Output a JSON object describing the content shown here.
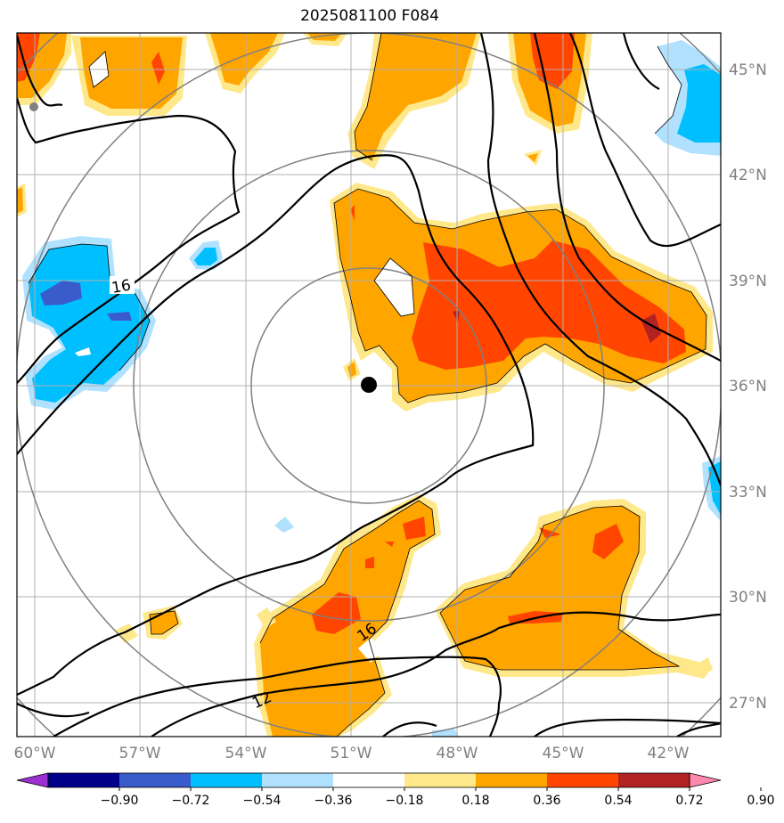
{
  "title": "2025081100 F084",
  "map": {
    "lon_ticks": [
      "60°W",
      "57°W",
      "54°W",
      "51°W",
      "48°W",
      "45°W",
      "42°W"
    ],
    "lat_ticks": [
      "45°N",
      "42°N",
      "39°N",
      "36°N",
      "33°N",
      "30°N",
      "27°N"
    ],
    "range_rings": 4,
    "center_marker": "storm-center",
    "contour_labels": [
      {
        "text": "16",
        "label": "upper-left"
      },
      {
        "text": "16",
        "label": "lower-center"
      },
      {
        "text": "12",
        "label": "lower-left"
      }
    ]
  },
  "colorbar": {
    "ticks": [
      "−0.90",
      "−0.72",
      "−0.54",
      "−0.36",
      "−0.18",
      "0.18",
      "0.36",
      "0.54",
      "0.72",
      "0.90"
    ],
    "colors": [
      "#9b30d0",
      "#00008b",
      "#3a5bcc",
      "#00bfff",
      "#b0e2ff",
      "#ffffff",
      "#ffe88a",
      "#ffa500",
      "#ff4500",
      "#b22222",
      "#ff88b0"
    ]
  },
  "colors": {
    "orange_fill": "#ffa500",
    "light_yellow": "#ffe88a",
    "red_fill": "#ff4500",
    "dark_red": "#b22222",
    "cyan": "#00bfff",
    "light_blue": "#b0e2ff",
    "blue": "#3a5bcc"
  }
}
